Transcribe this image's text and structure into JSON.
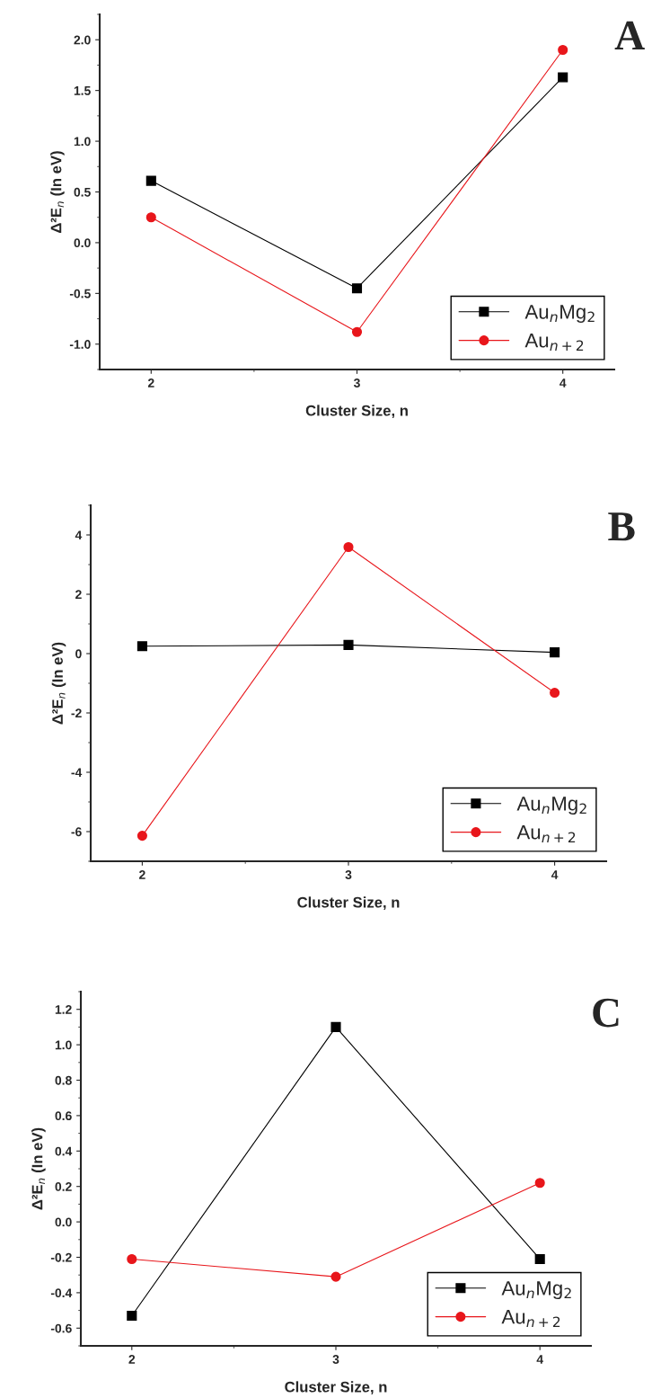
{
  "chart_data": [
    {
      "type": "line",
      "title": "A",
      "xlabel": "Cluster Size, n",
      "ylabel": "Δ²E$_{n}$ (In eV)",
      "x": [
        2,
        3,
        4
      ],
      "xlim": [
        1.75,
        4.25
      ],
      "xticks": [
        2,
        3,
        4
      ],
      "ylim": [
        -1.25,
        2.25
      ],
      "yticks": [
        {
          "value": -1.0,
          "label": "-1.0"
        },
        {
          "value": -0.5,
          "label": "-0.5"
        },
        {
          "value": 0.0,
          "label": "0.0"
        },
        {
          "value": 0.5,
          "label": "0.5"
        },
        {
          "value": 1.0,
          "label": "1.0"
        },
        {
          "value": 1.5,
          "label": "1.5"
        },
        {
          "value": 2.0,
          "label": "2.0"
        }
      ],
      "legend": "bottom right",
      "grid": false,
      "series": [
        {
          "name": "Au$_{n}$Mg$_{2}$",
          "color": "#000000",
          "marker": "square",
          "values": [
            0.61,
            -0.45,
            1.63
          ]
        },
        {
          "name": "Au$_{n+2}$",
          "color": "#e8161b",
          "marker": "circle",
          "values": [
            0.25,
            -0.88,
            1.9
          ]
        }
      ]
    },
    {
      "type": "line",
      "title": "B",
      "xlabel": "Cluster Size, n",
      "ylabel": "Δ²E$_{n}$ (In eV)",
      "x": [
        2,
        3,
        4
      ],
      "xlim": [
        1.75,
        4.25
      ],
      "xticks": [
        2,
        3,
        4
      ],
      "ylim": [
        -7,
        5
      ],
      "yticks": [
        -6,
        -4,
        -2,
        0,
        2,
        4
      ],
      "legend": "bottom right",
      "grid": false,
      "series": [
        {
          "name": "Au$_{n}$Mg$_{2}$",
          "color": "#000000",
          "marker": "square",
          "values": [
            0.25,
            0.29,
            0.04
          ]
        },
        {
          "name": "Au$_{n+2}$",
          "color": "#e8161b",
          "marker": "circle",
          "values": [
            -6.14,
            3.59,
            -1.32
          ]
        }
      ]
    },
    {
      "type": "line",
      "title": "C",
      "xlabel": "Cluster Size, n",
      "ylabel": "Δ²E$_{n}$ (In eV)",
      "x": [
        2,
        3,
        4
      ],
      "xlim": [
        1.75,
        4.25
      ],
      "xticks": [
        2,
        3,
        4
      ],
      "ylim": [
        -0.7,
        1.3
      ],
      "yticks": [
        {
          "value": -0.6,
          "label": "-0.6"
        },
        {
          "value": -0.4,
          "label": "-0.4"
        },
        {
          "value": -0.2,
          "label": "-0.2"
        },
        {
          "value": 0.0,
          "label": "0.0"
        },
        {
          "value": 0.2,
          "label": "0.2"
        },
        {
          "value": 0.4,
          "label": "0.4"
        },
        {
          "value": 0.6,
          "label": "0.6"
        },
        {
          "value": 0.8,
          "label": "0.8"
        },
        {
          "value": 1.0,
          "label": "1.0"
        },
        {
          "value": 1.2,
          "label": "1.2"
        }
      ],
      "legend": "bottom right",
      "grid": false,
      "series": [
        {
          "name": "Au$_{n}$Mg$_{2}$",
          "color": "#000000",
          "marker": "square",
          "values": [
            -0.53,
            1.1,
            -0.21
          ]
        },
        {
          "name": "Au$_{n+2}$",
          "color": "#e8161b",
          "marker": "circle",
          "values": [
            -0.21,
            -0.31,
            0.22
          ]
        }
      ]
    }
  ]
}
